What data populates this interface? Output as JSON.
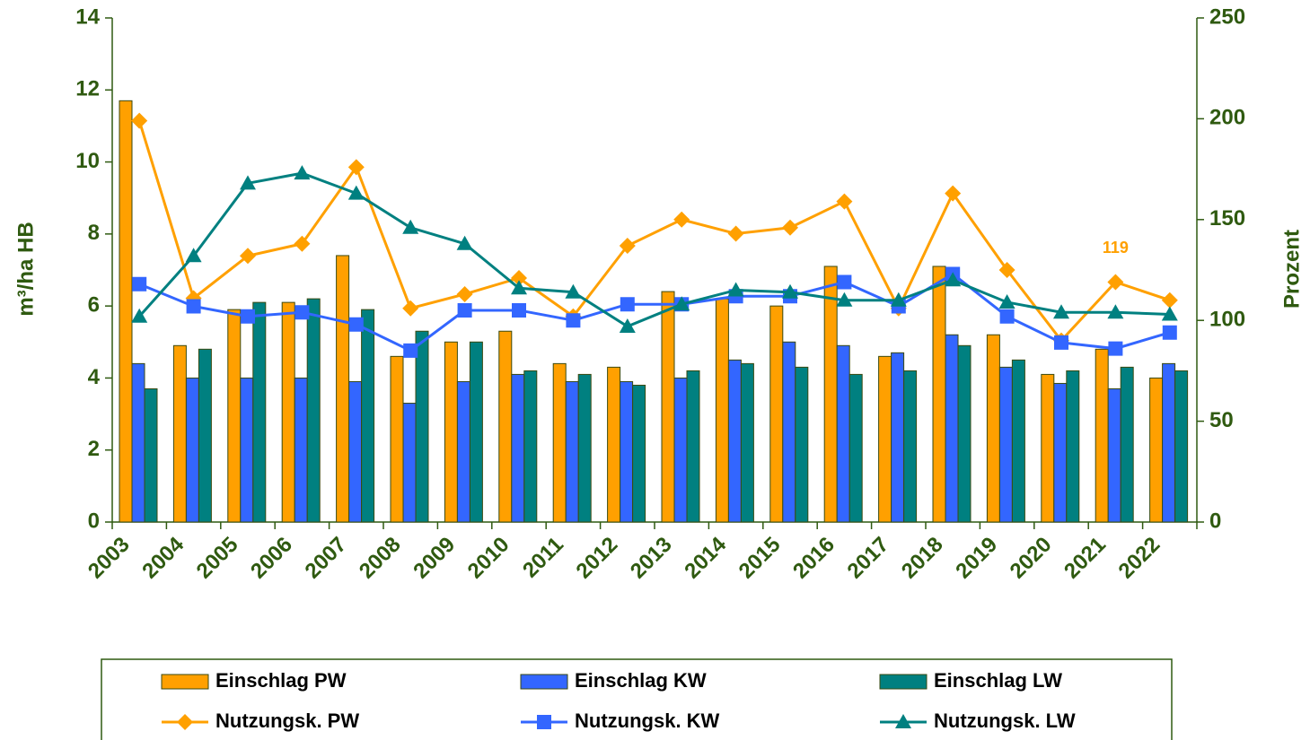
{
  "chart_data": {
    "type": "combo",
    "categories": [
      "2003",
      "2004",
      "2005",
      "2006",
      "2007",
      "2008",
      "2009",
      "2010",
      "2011",
      "2012",
      "2013",
      "2014",
      "2015",
      "2016",
      "2017",
      "2018",
      "2019",
      "2020",
      "2021",
      "2022"
    ],
    "ylabel": "m³/ha HB",
    "y2label": "Prozent",
    "ylim": [
      0,
      14
    ],
    "yticks": [
      0,
      2,
      4,
      6,
      8,
      10,
      12,
      14
    ],
    "y2lim": [
      0,
      250
    ],
    "y2ticks": [
      0,
      50,
      100,
      150,
      200,
      250
    ],
    "grid": false,
    "legend": "bottom",
    "series": [
      {
        "name": "Einschlag PW",
        "type": "bar",
        "color": "#ffa000",
        "values": [
          11.7,
          4.9,
          5.9,
          6.1,
          7.4,
          4.6,
          5.0,
          5.3,
          4.4,
          4.3,
          6.4,
          6.2,
          6.0,
          7.1,
          4.6,
          7.1,
          5.2,
          4.1,
          4.8,
          4.0
        ]
      },
      {
        "name": "Einschlag KW",
        "type": "bar",
        "color": "#3366ff",
        "values": [
          4.4,
          4.0,
          4.0,
          4.0,
          3.9,
          3.3,
          3.9,
          4.1,
          3.9,
          3.9,
          4.0,
          4.5,
          5.0,
          4.9,
          4.7,
          5.2,
          4.3,
          3.85,
          3.7,
          4.4
        ]
      },
      {
        "name": "Einschlag LW",
        "type": "bar",
        "color": "#008080",
        "values": [
          3.7,
          4.8,
          6.1,
          6.2,
          5.9,
          5.3,
          5.0,
          4.2,
          4.1,
          3.8,
          4.2,
          4.4,
          4.3,
          4.1,
          4.2,
          4.9,
          4.5,
          4.2,
          4.3,
          4.2
        ]
      },
      {
        "name": "Nutzungsk. PW",
        "type": "line",
        "marker": "diamond",
        "axis": "y2",
        "color": "#ffa000",
        "values": [
          199,
          111,
          132,
          138,
          176,
          106,
          113,
          121,
          102,
          137,
          150,
          143,
          146,
          159,
          106,
          163,
          125,
          90,
          119,
          110
        ],
        "value_labels": [
          null,
          null,
          null,
          null,
          null,
          null,
          null,
          null,
          null,
          null,
          null,
          null,
          null,
          null,
          null,
          null,
          null,
          null,
          "119",
          null
        ]
      },
      {
        "name": "Nutzungsk. KW",
        "type": "line",
        "marker": "square",
        "axis": "y2",
        "color": "#3366ff",
        "values": [
          118,
          107,
          102,
          104,
          98,
          85,
          105,
          105,
          100,
          108,
          108,
          112,
          112,
          119,
          107,
          123,
          102,
          89,
          86,
          94
        ]
      },
      {
        "name": "Nutzungsk. LW",
        "type": "line",
        "marker": "triangle",
        "axis": "y2",
        "color": "#008080",
        "values": [
          102,
          132,
          168,
          173,
          163,
          146,
          138,
          116,
          114,
          97,
          108,
          115,
          114,
          110,
          110,
          120,
          109,
          104,
          104,
          103
        ]
      }
    ]
  }
}
